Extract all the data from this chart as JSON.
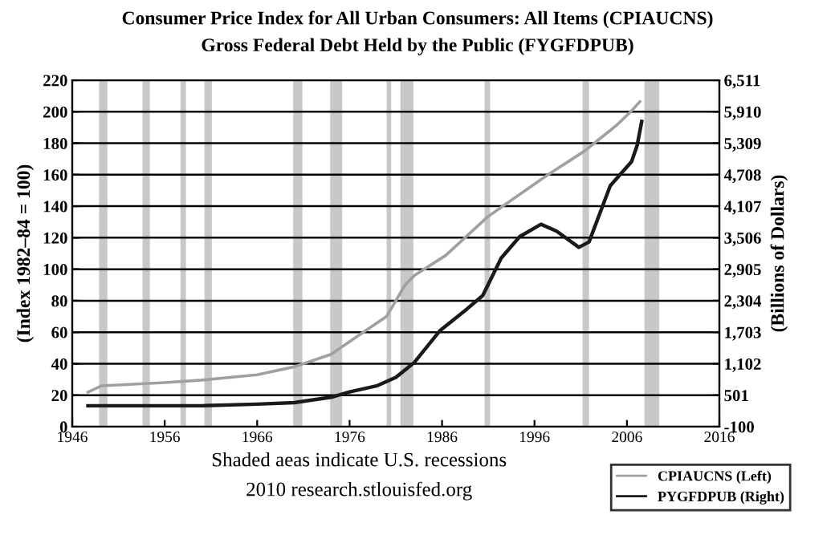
{
  "chart_data": {
    "type": "line",
    "title": "Consumer Price Index for All Urban Consumers: All Items (CPIAUCNS)",
    "subtitle": "Gross Federal Debt Held by the Public (FYGFDPUB)",
    "ylabel": "(Index 1982–84 = 100)",
    "y2label": "(Billions of Dollars)",
    "xlim": [
      1946,
      2016
    ],
    "xticks": [
      1946,
      1956,
      1966,
      1976,
      1986,
      1996,
      2006,
      2016
    ],
    "ylim": [
      0,
      220
    ],
    "yticks": [
      0,
      20,
      40,
      60,
      80,
      100,
      120,
      140,
      160,
      180,
      200,
      220
    ],
    "y2lim": [
      -100,
      6511
    ],
    "y2ticks": [
      {
        "value": -100,
        "label": "-100"
      },
      {
        "value": 501,
        "label": "501"
      },
      {
        "value": 1102,
        "label": "1,102"
      },
      {
        "value": 1703,
        "label": "1,703"
      },
      {
        "value": 2304,
        "label": "2,304"
      },
      {
        "value": 2905,
        "label": "2,905"
      },
      {
        "value": 3506,
        "label": "3,506"
      },
      {
        "value": 4107,
        "label": "4,107"
      },
      {
        "value": 4708,
        "label": "4,708"
      },
      {
        "value": 5309,
        "label": "5,309"
      },
      {
        "value": 5910,
        "label": "5,910"
      },
      {
        "value": 6511,
        "label": "6,511"
      }
    ],
    "grid": "y",
    "legend": "bottom right",
    "line_style": "solid",
    "series": [
      {
        "name": "CPIAUCNS (Left)",
        "color": "#a0a0a0",
        "x": [
          1947.7,
          1949.2,
          1952.6,
          1956,
          1960,
          1966,
          1970,
          1974,
          1977,
          1980,
          1982,
          1983,
          1986.4,
          1991,
          1997.4,
          2001.4,
          2004.9,
          2006.5,
          2007.4
        ],
        "values": [
          22,
          26,
          27,
          28,
          29.6,
          33,
          38,
          46,
          58,
          70,
          90,
          96,
          108.8,
          133.6,
          159.8,
          175,
          191.5,
          200.6,
          206.4
        ]
      },
      {
        "name": "PYGFDPUB (Right)",
        "color": "#1a1a1a",
        "axis": "y2",
        "x": [
          1947.7,
          1960,
          1966,
          1970,
          1974,
          1976,
          1979,
          1981,
          1983,
          1985.8,
          1988.7,
          1990.4,
          1992.4,
          1994.4,
          1996.7,
          1998.4,
          2000.8,
          2001.9,
          2004.2,
          2006.5,
          2007.1,
          2007.6
        ],
        "values": [
          300,
          300,
          330,
          360,
          462,
          563,
          683,
          840,
          1126,
          1738,
          2147,
          2403,
          3118,
          3527,
          3762,
          3629,
          3322,
          3425,
          4498,
          4957,
          5264,
          5724
        ]
      }
    ],
    "bands": [
      {
        "axis": "x",
        "from": 1948.9,
        "to": 1949.8,
        "color": "#c8c8c8"
      },
      {
        "axis": "x",
        "from": 1953.6,
        "to": 1954.4,
        "color": "#c8c8c8"
      },
      {
        "axis": "x",
        "from": 1957.7,
        "to": 1958.3,
        "color": "#c8c8c8"
      },
      {
        "axis": "x",
        "from": 1960.3,
        "to": 1961.1,
        "color": "#c8c8c8"
      },
      {
        "axis": "x",
        "from": 1969.9,
        "to": 1970.9,
        "color": "#c8c8c8"
      },
      {
        "axis": "x",
        "from": 1973.9,
        "to": 1975.2,
        "color": "#c8c8c8"
      },
      {
        "axis": "x",
        "from": 1980.0,
        "to": 1980.5,
        "color": "#c8c8c8"
      },
      {
        "axis": "x",
        "from": 1981.5,
        "to": 1982.9,
        "color": "#c8c8c8"
      },
      {
        "axis": "x",
        "from": 1990.6,
        "to": 1991.2,
        "color": "#c8c8c8"
      },
      {
        "axis": "x",
        "from": 2001.2,
        "to": 2001.9,
        "color": "#c8c8c8"
      },
      {
        "axis": "x",
        "from": 2007.9,
        "to": 2009.5,
        "color": "#c8c8c8"
      }
    ],
    "annotations": [
      "Shaded aeas indicate U.S. recessions",
      "2010 research.stlouisfed.org"
    ]
  }
}
